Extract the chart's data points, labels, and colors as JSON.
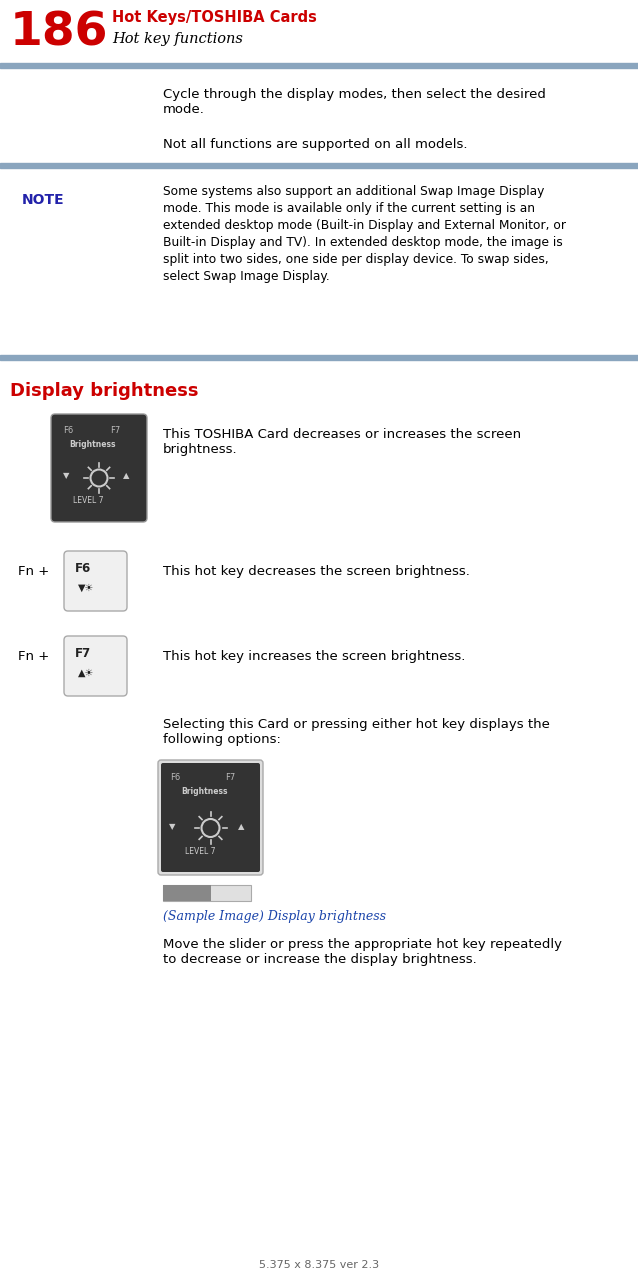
{
  "page_number": "186",
  "chapter_title": "Hot Keys/TOSHIBA Cards",
  "section_subtitle": "Hot key functions",
  "header_line_color": "#8aa5be",
  "page_number_color": "#cc0000",
  "chapter_title_color": "#cc0000",
  "body_text_color": "#000000",
  "note_label_color": "#2222aa",
  "display_brightness_color": "#cc0000",
  "italic_caption_color": "#1a44aa",
  "footer_text": "5.375 x 8.375 ver 2.3",
  "background_color": "#ffffff",
  "texts": {
    "cycle_text": "Cycle through the display modes, then select the desired\nmode.",
    "not_all_text": "Not all functions are supported on all models.",
    "note_text": "Some systems also support an additional Swap Image Display\nmode. This mode is available only if the current setting is an\nextended desktop mode (Built-in Display and External Monitor, or\nBuilt-in Display and TV). In extended desktop mode, the image is\nsplit into two sides, one side per display device. To swap sides,\nselect Swap Image Display.",
    "display_brightness_heading": "Display brightness",
    "card_desc": "This TOSHIBA Card decreases or increases the screen\nbrightness.",
    "fn_decrease": "This hot key decreases the screen brightness.",
    "fn_increase": "This hot key increases the screen brightness.",
    "selecting_text": "Selecting this Card or pressing either hot key displays the\nfollowing options:",
    "sample_caption": "(Sample Image) Display brightness",
    "move_slider": "Move the slider or press the appropriate hot key repeatedly\nto decrease or increase the display brightness.",
    "note_label": "NOTE"
  }
}
